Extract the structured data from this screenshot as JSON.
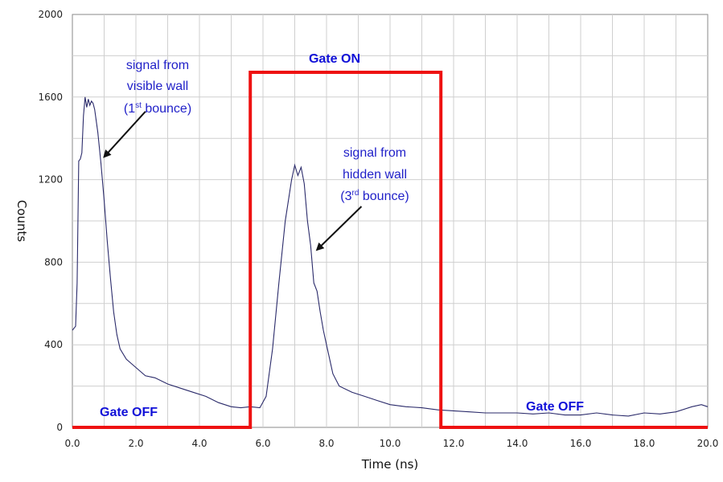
{
  "chart_data": {
    "type": "line",
    "title": "",
    "xlabel": "Time (ns)",
    "ylabel": "Counts",
    "xlim": [
      0,
      20
    ],
    "ylim": [
      0,
      2000
    ],
    "x_ticks": [
      "0.0",
      "2.0",
      "4.0",
      "6.0",
      "8.0",
      "10.0",
      "12.0",
      "14.0",
      "16.0",
      "18.0",
      "20.0"
    ],
    "y_ticks": [
      "0",
      "400",
      "800",
      "1200",
      "1600",
      "2000"
    ],
    "grid": true,
    "series": [
      {
        "color": "#2a2a6a",
        "x": [
          0.0,
          0.1,
          0.15,
          0.2,
          0.25,
          0.3,
          0.35,
          0.4,
          0.45,
          0.5,
          0.55,
          0.6,
          0.65,
          0.7,
          0.8,
          0.9,
          1.0,
          1.1,
          1.2,
          1.3,
          1.4,
          1.5,
          1.7,
          2.0,
          2.3,
          2.6,
          3.0,
          3.4,
          3.8,
          4.2,
          4.6,
          5.0,
          5.3,
          5.6,
          5.9,
          6.1,
          6.3,
          6.5,
          6.7,
          6.9,
          7.0,
          7.1,
          7.2,
          7.3,
          7.4,
          7.5,
          7.6,
          7.7,
          7.8,
          7.9,
          8.0,
          8.2,
          8.4,
          8.8,
          9.2,
          9.6,
          10.0,
          10.5,
          11.0,
          11.5,
          12.0,
          12.5,
          13.0,
          13.5,
          14.0,
          14.5,
          15.0,
          15.5,
          16.0,
          16.5,
          17.0,
          17.5,
          18.0,
          18.5,
          19.0,
          19.5,
          19.8,
          20.0
        ],
        "y": [
          470,
          490,
          700,
          1290,
          1300,
          1330,
          1510,
          1600,
          1550,
          1590,
          1560,
          1580,
          1570,
          1540,
          1430,
          1280,
          1100,
          900,
          720,
          560,
          450,
          380,
          330,
          290,
          250,
          240,
          210,
          190,
          170,
          150,
          120,
          100,
          95,
          100,
          95,
          150,
          380,
          700,
          1000,
          1200,
          1270,
          1220,
          1260,
          1180,
          1000,
          880,
          700,
          660,
          560,
          470,
          400,
          260,
          200,
          170,
          150,
          130,
          110,
          100,
          95,
          85,
          80,
          75,
          70,
          70,
          70,
          65,
          70,
          60,
          60,
          70,
          60,
          55,
          70,
          65,
          75,
          100,
          110,
          100
        ]
      }
    ],
    "gate": {
      "color": "#ee1111",
      "x": [
        0.0,
        5.6,
        5.6,
        11.6,
        11.6,
        20.0
      ],
      "y": [
        0,
        0,
        1720,
        1720,
        0,
        0
      ]
    },
    "annotations": [
      {
        "lines": [
          "signal from",
          "visible wall",
          "(1",
          "st",
          " bounce)"
        ],
        "arrow_from": [
          2.3,
          1530
        ],
        "arrow_to": [
          1.0,
          1310
        ]
      },
      {
        "lines": [
          "signal from",
          "hidden wall",
          "(3",
          "rd",
          " bounce)"
        ],
        "arrow_from": [
          9.1,
          1070
        ],
        "arrow_to": [
          7.7,
          860
        ]
      }
    ],
    "gate_labels": {
      "left_off": "Gate OFF",
      "on": "Gate ON",
      "right_off": "Gate OFF"
    }
  }
}
